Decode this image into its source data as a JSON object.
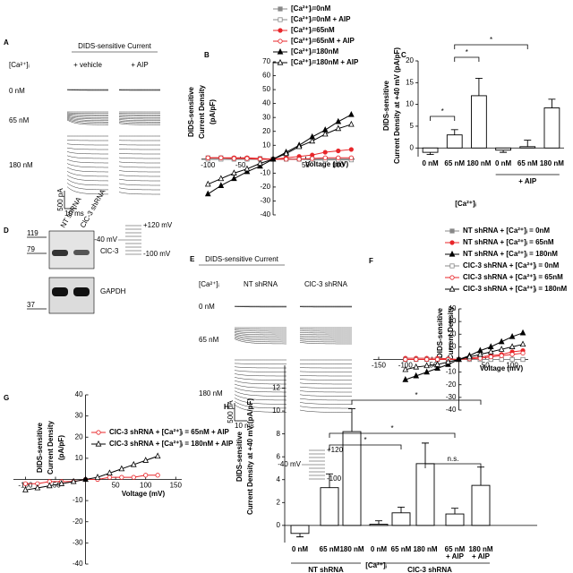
{
  "panels": {
    "letters": [
      "A",
      "B",
      "C",
      "D",
      "E",
      "F",
      "G",
      "H"
    ],
    "A": {
      "title": "DIDS-sensitive Current",
      "ca_label": "[Ca²⁺]ᵢ",
      "conditions": [
        "+ vehicle",
        "+ AIP"
      ],
      "rows": [
        "0 nM",
        "65 nM",
        "180 nM"
      ],
      "scale_y": "500 pA",
      "scale_x": "10 ms",
      "protocol": [
        "+120 mV",
        "-40 mV",
        "-100 mV"
      ]
    },
    "D": {
      "lanes": [
        "NT shRNA",
        "ClC-3 shRNA"
      ],
      "markers": [
        "119",
        "79",
        "37"
      ],
      "proteins": [
        "ClC-3",
        "GAPDH"
      ]
    },
    "E": {
      "title": "DIDS-sensitive Current",
      "ca_label": "[Ca²⁺]ᵢ",
      "conditions": [
        "NT shRNA",
        "ClC-3 shRNA"
      ],
      "rows": [
        "0 nM",
        "65 nM",
        "180 nM"
      ],
      "scale_y": "500 pA",
      "scale_x": "10 ms",
      "protocol": [
        "+120 mV",
        "-40 mV",
        "-100 mV"
      ]
    }
  },
  "chart_data": [
    {
      "type": "line",
      "xlabel": "Voltage (mV)",
      "ylabel": [
        "DIDS-sensitive",
        "Current Density",
        "(pA/pF)"
      ],
      "x": [
        -100,
        -80,
        -60,
        -40,
        -20,
        0,
        20,
        40,
        60,
        80,
        100,
        120
      ],
      "xlim": [
        -110,
        125
      ],
      "ylim": [
        -40,
        70
      ],
      "xticks": [
        -100,
        -50,
        50,
        100
      ],
      "yticks": [
        70,
        60,
        50,
        40,
        30,
        20,
        10,
        -10,
        -20,
        -30,
        -40
      ],
      "series": [
        {
          "name": "[Ca²⁺]ᵢ=0nM",
          "color": "#888888",
          "marker": "square",
          "filled": true,
          "values": [
            1,
            1,
            0.5,
            0.5,
            0.5,
            0,
            0,
            0,
            0,
            0,
            0,
            0
          ]
        },
        {
          "name": "[Ca²⁺]ᵢ=0nM + AIP",
          "color": "#888888",
          "marker": "square",
          "filled": false,
          "values": [
            0,
            0,
            0,
            0,
            0,
            0,
            0,
            0,
            -0.5,
            -0.5,
            -0.5,
            -0.5
          ]
        },
        {
          "name": "[Ca²⁺]ᵢ=65nM",
          "color": "#e8262a",
          "marker": "circle",
          "filled": true,
          "values": [
            1,
            1,
            1,
            1,
            0.5,
            0,
            1,
            2,
            3,
            5,
            6,
            7
          ]
        },
        {
          "name": "[Ca²⁺]ᵢ=65nM + AIP",
          "color": "#e8262a",
          "marker": "circle",
          "filled": false,
          "values": [
            1,
            1,
            0.5,
            0.5,
            0,
            0,
            0,
            0,
            0.5,
            1,
            1,
            1
          ]
        },
        {
          "name": "[Ca²⁺]ᵢ=180nM",
          "color": "#000000",
          "marker": "triangle",
          "filled": true,
          "values": [
            -25,
            -19,
            -14,
            -9,
            -5,
            0,
            5,
            10,
            16,
            21,
            27,
            32
          ]
        },
        {
          "name": "[Ca²⁺]ᵢ=180nM + AIP",
          "color": "#000000",
          "marker": "triangle",
          "filled": false,
          "values": [
            -18,
            -14,
            -10,
            -7,
            -3,
            0,
            4,
            9,
            13,
            18,
            22,
            25
          ]
        }
      ]
    },
    {
      "type": "bar",
      "ylabel": [
        "DIDS-sensitive",
        "Current Density at +40 mV (pA/pF)"
      ],
      "categories": [
        "0 nM",
        "65 nM",
        "180 nM",
        "0 nM",
        "65 nM",
        "180 nM"
      ],
      "values": [
        -1,
        3,
        12,
        -0.5,
        0.3,
        9.2
      ],
      "errors": [
        0.5,
        1.2,
        4,
        0.5,
        1.5,
        2
      ],
      "color": "#ffffff",
      "ylim": [
        -2,
        20
      ],
      "yticks": [
        0,
        5,
        10,
        15,
        20
      ],
      "group_label": "+ AIP",
      "xlabel": "[Ca²⁺]ᵢ",
      "annotations": [
        "*",
        "*",
        "*"
      ]
    },
    {
      "type": "line",
      "xlabel": "Voltage (mV)",
      "ylabel": [
        "DIDS-sensitive",
        "Current Density"
      ],
      "x": [
        -100,
        -80,
        -60,
        -40,
        -20,
        0,
        20,
        40,
        60,
        80,
        100,
        120
      ],
      "xlim": [
        -160,
        130
      ],
      "ylim": [
        -40,
        40
      ],
      "xticks": [
        -150,
        -100,
        -50,
        50,
        100
      ],
      "yticks": [
        40,
        30,
        20,
        10,
        -10,
        -20,
        -30,
        -40
      ],
      "series": [
        {
          "name": "NT shRNA + [Ca²⁺]ᵢ = 0nM",
          "color": "#888888",
          "marker": "square",
          "filled": true,
          "values": [
            0,
            0,
            0,
            0,
            0,
            0,
            0,
            0,
            0,
            0,
            0,
            0
          ]
        },
        {
          "name": "NT shRNA + [Ca²⁺]ᵢ = 65nM",
          "color": "#e8262a",
          "marker": "circle",
          "filled": true,
          "values": [
            1,
            1,
            1,
            1,
            0.5,
            0,
            1,
            2,
            3,
            4,
            6,
            7
          ]
        },
        {
          "name": "NT shRNA + [Ca²⁺]ᵢ = 180nM",
          "color": "#000000",
          "marker": "triangle",
          "filled": true,
          "values": [
            -16,
            -13,
            -10,
            -7,
            -4,
            0,
            3,
            7,
            10,
            14,
            18,
            21
          ]
        },
        {
          "name": "ClC-3 shRNA + [Ca²⁺]ᵢ = 0nM",
          "color": "#888888",
          "marker": "square",
          "filled": false,
          "values": [
            0,
            0,
            0,
            0,
            0,
            0,
            0,
            0,
            0,
            0,
            0,
            0
          ]
        },
        {
          "name": "ClC-3 shRNA + [Ca²⁺]ᵢ = 65nM",
          "color": "#e8262a",
          "marker": "circle",
          "filled": false,
          "values": [
            0,
            0,
            0,
            0,
            0,
            0,
            0.5,
            1,
            2,
            3,
            4,
            5
          ]
        },
        {
          "name": "ClC-3 shRNA + [Ca²⁺]ᵢ = 180nM",
          "color": "#000000",
          "marker": "triangle",
          "filled": false,
          "values": [
            -8,
            -6,
            -5,
            -4,
            -2,
            0,
            2,
            4,
            6,
            8,
            10,
            12
          ]
        }
      ]
    },
    {
      "type": "line",
      "xlabel": "Voltage (mV)",
      "ylabel": [
        "DIDS-sensitive",
        "Current Density",
        "(pA/pF)"
      ],
      "x": [
        -100,
        -80,
        -60,
        -40,
        -20,
        0,
        20,
        40,
        60,
        80,
        100,
        120
      ],
      "xlim": [
        -120,
        160
      ],
      "ylim": [
        -40,
        40
      ],
      "xticks": [
        -100,
        -50,
        50,
        100,
        150
      ],
      "yticks": [
        40,
        30,
        20,
        10,
        -10,
        -20,
        -30,
        -40
      ],
      "series": [
        {
          "name": "ClC-3 shRNA + [Ca²⁺]ᵢ = 65nM + AIP",
          "color": "#e8262a",
          "marker": "circle",
          "filled": false,
          "values": [
            -2,
            -2,
            -1,
            -1,
            -1,
            0,
            0,
            1,
            1,
            1,
            2,
            2
          ]
        },
        {
          "name": "ClC-3 shRNA + [Ca²⁺]ᵢ = 180nM + AIP",
          "color": "#000000",
          "marker": "triangle",
          "filled": false,
          "values": [
            -5,
            -4,
            -3,
            -2,
            -1,
            0,
            1,
            3,
            5,
            7,
            9,
            11
          ]
        }
      ]
    },
    {
      "type": "bar",
      "ylabel": [
        "DIDS-sensitive",
        "Current Density at +40 mV (pA/pF)"
      ],
      "categories": [
        "0 nM",
        "65 nM",
        "180 nM",
        "0 nM",
        "65 nM",
        "180 nM",
        "65 nM",
        "180 nM"
      ],
      "aip_labels": [
        "+ AIP",
        "+ AIP"
      ],
      "values": [
        -0.7,
        3.3,
        8.2,
        0.1,
        1.1,
        5.4,
        1.0,
        3.5
      ],
      "errors": [
        0.3,
        1.2,
        2,
        0.3,
        0.5,
        1.8,
        0.5,
        1.6
      ],
      "color": "#ffffff",
      "ylim": [
        -1.5,
        14
      ],
      "yticks": [
        0,
        2,
        4,
        6,
        8,
        10,
        12
      ],
      "groups": [
        "NT shRNA",
        "ClC-3 shRNA"
      ],
      "xlabel": "[Ca²⁺]ᵢ",
      "annotations": [
        "*",
        "*",
        "*",
        "n.s."
      ]
    }
  ]
}
